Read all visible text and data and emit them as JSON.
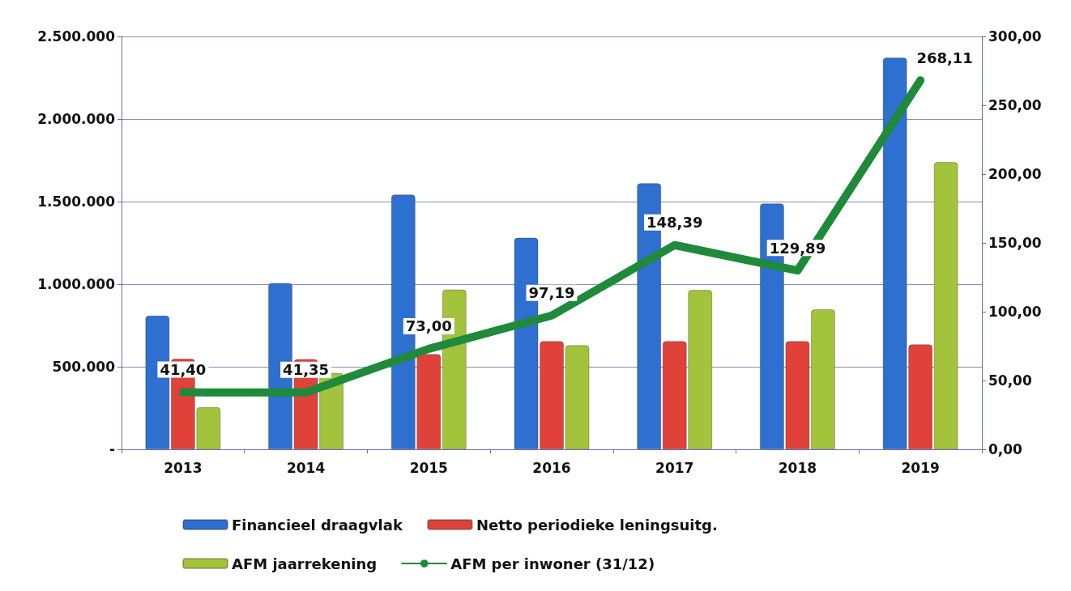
{
  "chart_data": {
    "type": "bar",
    "categories": [
      "2013",
      "2014",
      "2015",
      "2016",
      "2017",
      "2018",
      "2019"
    ],
    "series": [
      {
        "name": "Financieel draagvlak",
        "color": "#2f6fd0",
        "values": [
          810000,
          1007000,
          1543000,
          1282000,
          1612000,
          1489000,
          2372000
        ]
      },
      {
        "name": "Netto periodieke leningsuitg.",
        "color": "#e0423a",
        "values": [
          549000,
          547000,
          577000,
          656000,
          656000,
          656000,
          636000
        ]
      },
      {
        "name": "AFM jaarrekening",
        "color": "#a3c33c",
        "values": [
          256000,
          463000,
          968000,
          631000,
          966000,
          848000,
          1740000
        ]
      },
      {
        "name": "AFM per inwoner (31/12)",
        "type": "line",
        "axis": "y2",
        "color": "#1e8a3a",
        "values": [
          41.4,
          41.35,
          73.0,
          97.19,
          148.39,
          129.89,
          268.11
        ],
        "value_labels": [
          "41,40",
          "41,35",
          "73,00",
          "97,19",
          "148,39",
          "129,89",
          "268,11"
        ]
      }
    ],
    "ylim": [
      0,
      2500000
    ],
    "yticks": [
      {
        "value": 0,
        "label": "-"
      },
      {
        "value": 500000,
        "label": "500.000"
      },
      {
        "value": 1000000,
        "label": "1.000.000"
      },
      {
        "value": 1500000,
        "label": "1.500.000"
      },
      {
        "value": 2000000,
        "label": "2.000.000"
      },
      {
        "value": 2500000,
        "label": "2.500.000"
      }
    ],
    "y2lim": [
      0,
      300
    ],
    "y2ticks": [
      {
        "value": 0,
        "label": "0,00"
      },
      {
        "value": 50,
        "label": "50,00"
      },
      {
        "value": 100,
        "label": "100,00"
      },
      {
        "value": 150,
        "label": "150,00"
      },
      {
        "value": 200,
        "label": "200,00"
      },
      {
        "value": 250,
        "label": "250,00"
      },
      {
        "value": 300,
        "label": "300,00"
      }
    ],
    "grid": "y",
    "legend": "bottom",
    "marker": "none",
    "line_style": "solid"
  }
}
